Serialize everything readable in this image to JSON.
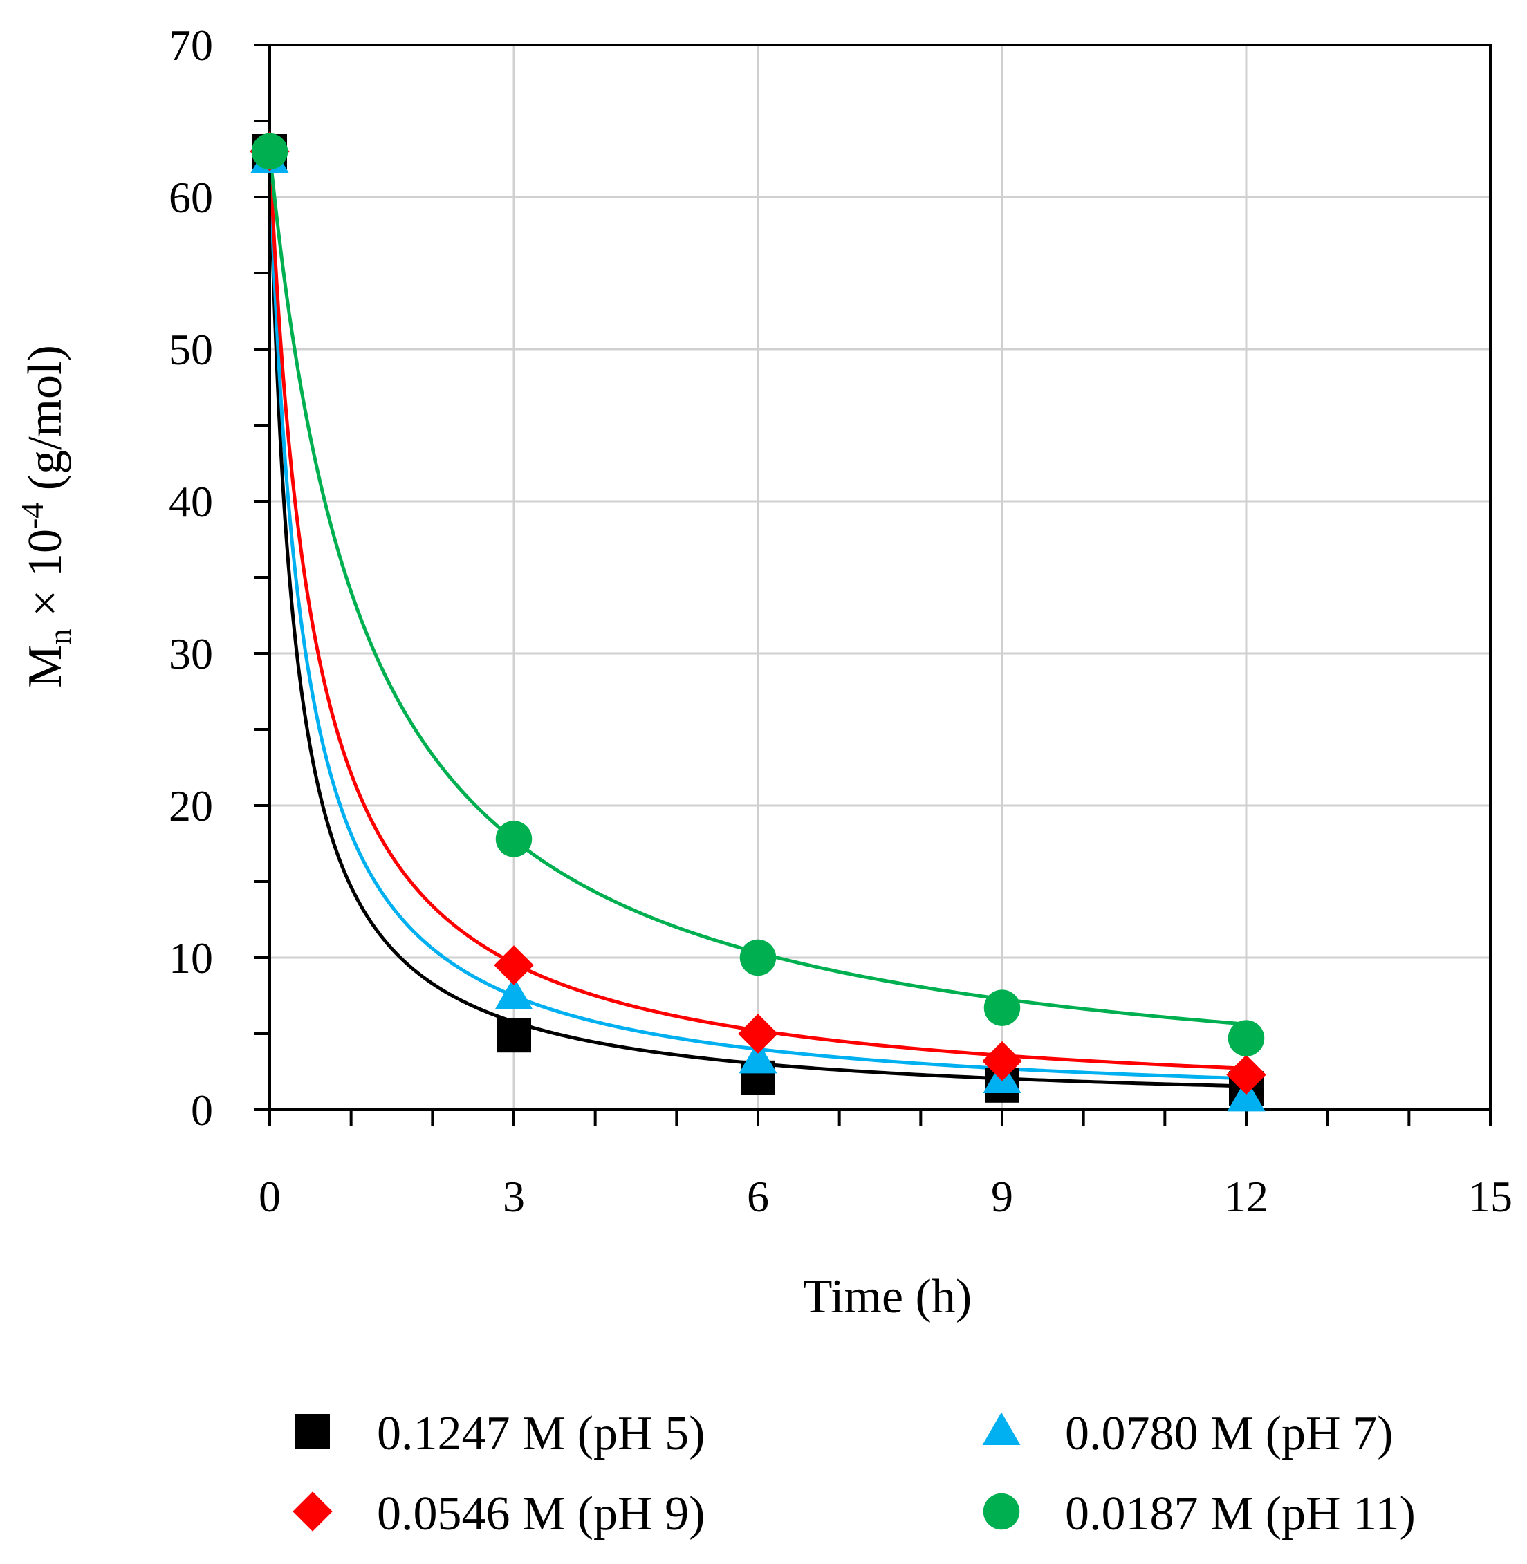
{
  "chart_data": {
    "type": "scatter",
    "title": "",
    "xlabel": "Time (h)",
    "ylabel_parts": {
      "main": "M",
      "sub": "n",
      "mid": " × 10",
      "sup": "-4",
      "unit": " (g/mol)"
    },
    "xlim": [
      0,
      15
    ],
    "ylim": [
      0,
      70
    ],
    "xticks": [
      0,
      3,
      6,
      9,
      12,
      15
    ],
    "yticks": [
      0,
      10,
      20,
      30,
      40,
      50,
      60,
      70
    ],
    "xtick_labels": [
      "0",
      "3",
      "6",
      "9",
      "12",
      "15"
    ],
    "ytick_labels": [
      "0",
      "10",
      "20",
      "30",
      "40",
      "50",
      "60",
      "70"
    ],
    "grid": true,
    "legend_position": "bottom",
    "series": [
      {
        "name": "0.1247 M (pH 5)",
        "marker": "square",
        "color": "#000000",
        "line_color": "#000000",
        "x": [
          0,
          3,
          6,
          9,
          12
        ],
        "y": [
          63,
          4.9,
          2.1,
          1.6,
          1.4
        ],
        "fit_k": 3.3
      },
      {
        "name": "0.0780 M (pH 7)",
        "marker": "triangle",
        "color": "#00b0f0",
        "line_color": "#00b0f0",
        "x": [
          0,
          3,
          6,
          9,
          12
        ],
        "y": [
          62.5,
          7.5,
          3.3,
          2.0,
          0.8
        ],
        "fit_k": 2.45
      },
      {
        "name": "0.0546 M (pH 9)",
        "marker": "diamond",
        "color": "#ff0000",
        "line_color": "#ff0000",
        "x": [
          0,
          3,
          6,
          9,
          12
        ],
        "y": [
          63,
          9.5,
          5.0,
          3.2,
          2.3
        ],
        "fit_k": 1.85
      },
      {
        "name": "0.0187 M (pH 11)",
        "marker": "circle",
        "color": "#00b050",
        "line_color": "#00b050",
        "x": [
          0,
          3,
          6,
          9,
          12
        ],
        "y": [
          63,
          17.8,
          10.0,
          6.7,
          4.7
        ],
        "fit_k": 0.85
      }
    ]
  }
}
